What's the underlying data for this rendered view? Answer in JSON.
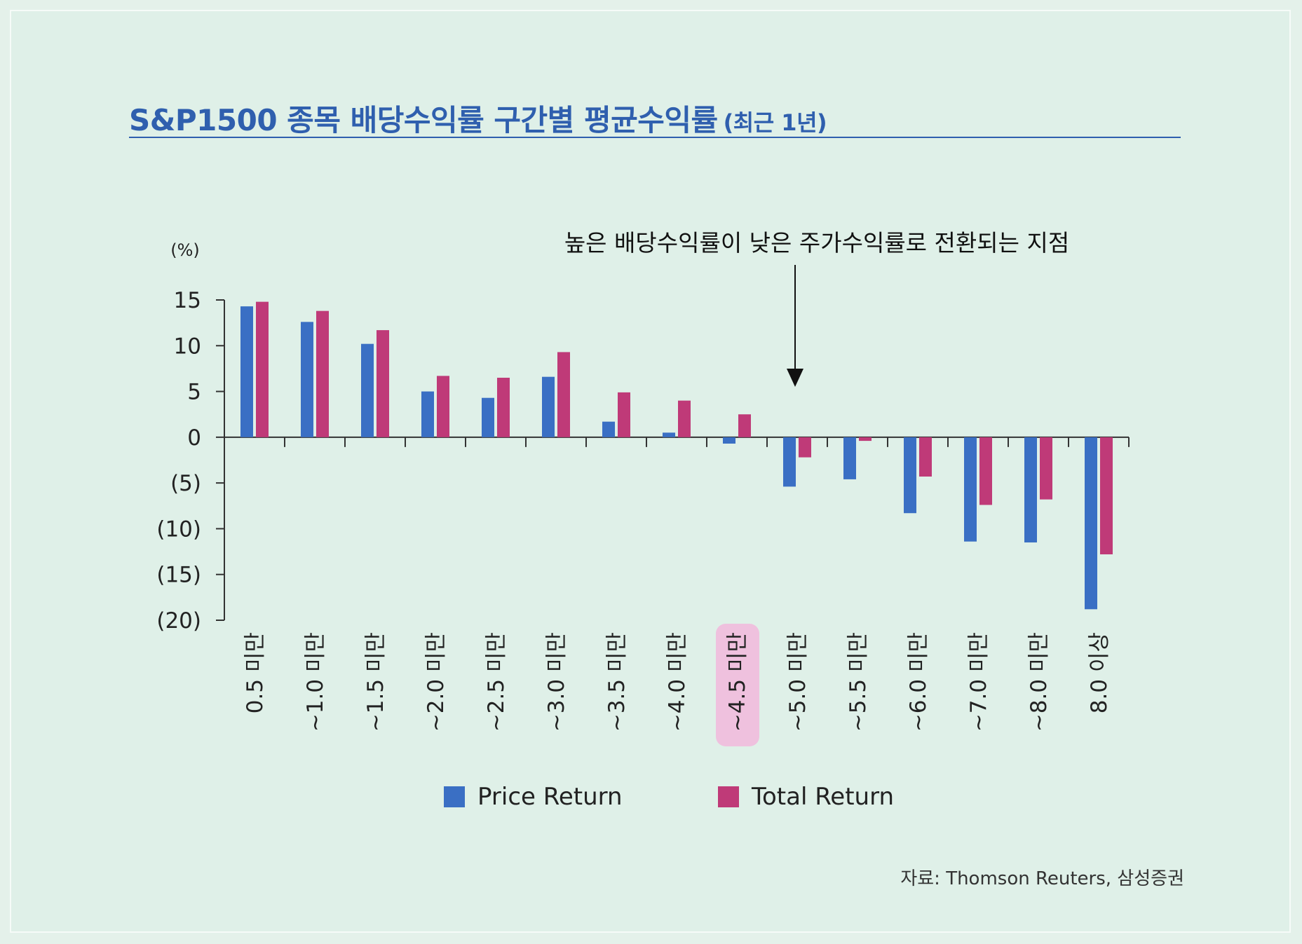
{
  "title": {
    "main": "S&P1500 종목 배당수익률 구간별 평균수익률",
    "sub": "(최근 1년)"
  },
  "source": "자료: Thomson Reuters, 삼성증권",
  "colors": {
    "price": "#3a6fc4",
    "total": "#bf3a78",
    "accent": "#2f5fae",
    "highlight": "#f2b8dc"
  },
  "chart_data": {
    "type": "bar",
    "ylabel": "(%)",
    "ylim": [
      -20,
      15
    ],
    "yticks": [
      15,
      10,
      5,
      0,
      -5,
      -10,
      -15,
      -20
    ],
    "ytick_labels": [
      "15",
      "10",
      "5",
      "0",
      "(5)",
      "(10)",
      "(15)",
      "(20)"
    ],
    "categories": [
      "0.5 미만",
      "~1.0 미만",
      "~1.5 미만",
      "~2.0 미만",
      "~2.5 미만",
      "~3.0 미만",
      "~3.5 미만",
      "~4.0 미만",
      "~4.5 미만",
      "~5.0 미만",
      "~5.5 미만",
      "~6.0 미만",
      "~7.0 미만",
      "~8.0 미만",
      "8.0 이상"
    ],
    "highlighted_category": "~4.5 미만",
    "series": [
      {
        "name": "Price Return",
        "color": "#3a6fc4",
        "values": [
          14.3,
          12.6,
          10.2,
          5.0,
          4.3,
          6.6,
          1.7,
          0.5,
          -0.7,
          -5.4,
          -4.6,
          -8.3,
          -11.4,
          -11.5,
          -18.8
        ]
      },
      {
        "name": "Total Return",
        "color": "#bf3a78",
        "values": [
          14.8,
          13.8,
          11.7,
          6.7,
          6.5,
          9.3,
          4.9,
          4.0,
          2.5,
          -2.2,
          -0.4,
          -4.3,
          -7.4,
          -6.8,
          -12.8
        ]
      }
    ],
    "annotation": "높은 배당수익률이 낮은 주가수익률로 전환되는 지점",
    "legend_position": "bottom"
  }
}
